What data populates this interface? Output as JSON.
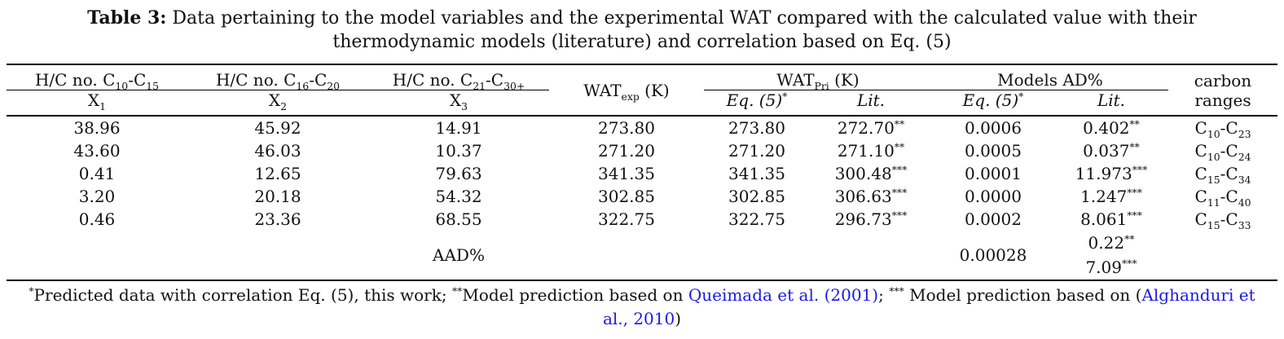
{
  "caption": {
    "label": "Table 3:",
    "text_line1": " Data pertaining to the model variables and the experimental WAT compared with the calculated value with their",
    "text_line2": "thermodynamic models (literature) and correlation based on Eq. (5)"
  },
  "headers": {
    "hc1": "H/C no. C",
    "hc1_a": "10",
    "hc1_b": "15",
    "hc2": "H/C no. C",
    "hc2_a": "16",
    "hc2_b": "20",
    "hc3": "H/C no. C",
    "hc3_a": "21",
    "hc3_b": "30+",
    "x1": "X",
    "x1_sub": "1",
    "x2": "X",
    "x2_sub": "2",
    "x3": "X",
    "x3_sub": "3",
    "wat_exp": "WAT",
    "wat_exp_sub": "exp",
    "wat_exp_unit": " (K)",
    "wat_pri": "WAT",
    "wat_pri_sub": "Pri",
    "wat_pri_unit": " (K)",
    "models_ad": "Models AD%",
    "eq5": "Eq. (5)",
    "eq5_sup": "*",
    "lit": "Lit.",
    "carbon": "carbon",
    "ranges": "ranges"
  },
  "rows": [
    {
      "x1": "38.96",
      "x2": "45.92",
      "x3": "14.91",
      "exp": "273.80",
      "eq": "273.80",
      "lit": "272.70",
      "lit_sup": "**",
      "ad_eq": "0.0006",
      "ad_lit": "0.402",
      "ad_lit_sup": "**",
      "c_a": "10",
      "c_b": "23"
    },
    {
      "x1": "43.60",
      "x2": "46.03",
      "x3": "10.37",
      "exp": "271.20",
      "eq": "271.20",
      "lit": "271.10",
      "lit_sup": "**",
      "ad_eq": "0.0005",
      "ad_lit": "0.037",
      "ad_lit_sup": "**",
      "c_a": "10",
      "c_b": "24"
    },
    {
      "x1": "0.41",
      "x2": "12.65",
      "x3": "79.63",
      "exp": "341.35",
      "eq": "341.35",
      "lit": "300.48",
      "lit_sup": "***",
      "ad_eq": "0.0001",
      "ad_lit": "11.973",
      "ad_lit_sup": "***",
      "c_a": "15",
      "c_b": "34"
    },
    {
      "x1": "3.20",
      "x2": "20.18",
      "x3": "54.32",
      "exp": "302.85",
      "eq": "302.85",
      "lit": "306.63",
      "lit_sup": "***",
      "ad_eq": "0.0000",
      "ad_lit": "1.247",
      "ad_lit_sup": "***",
      "c_a": "11",
      "c_b": "40"
    },
    {
      "x1": "0.46",
      "x2": "23.36",
      "x3": "68.55",
      "exp": "322.75",
      "eq": "322.75",
      "lit": "296.73",
      "lit_sup": "***",
      "ad_eq": "0.0002",
      "ad_lit": "8.061",
      "ad_lit_sup": "***",
      "c_a": "15",
      "c_b": "33"
    }
  ],
  "aad": {
    "label": "AAD%",
    "eq": "0.00028",
    "lit1": "0.22",
    "lit1_sup": "**",
    "lit2": "7.09",
    "lit2_sup": "***"
  },
  "note": {
    "s1": "*",
    "t1": "Predicted data with correlation Eq. (5), this work; ",
    "s2": "**",
    "t2": "Model prediction based on ",
    "link1": "Queimada et al. (2001)",
    "t3": "; ",
    "s3": "***",
    "t4": " Model prediction based on (",
    "link2a": "Alghanduri et",
    "link2b": "al., 2010",
    "t5": ")"
  },
  "colors": {
    "link": "#1a1ae6",
    "text": "#111111"
  }
}
